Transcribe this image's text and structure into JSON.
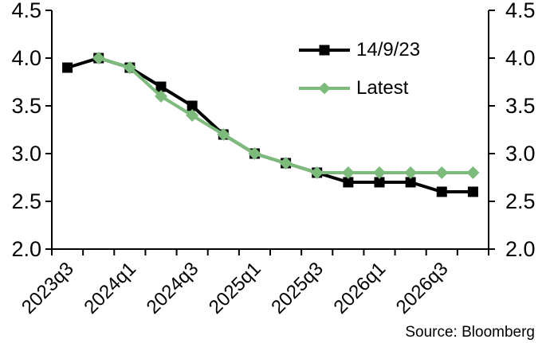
{
  "chart_data": {
    "type": "line",
    "title": "",
    "xlabel": "",
    "ylabel": "",
    "x_categories": [
      "2023q3",
      "2023q4",
      "2024q1",
      "2024q2",
      "2024q3",
      "2024q4",
      "2025q1",
      "2025q2",
      "2025q3",
      "2025q4",
      "2026q1",
      "2026q2",
      "2026q3",
      "2026q4"
    ],
    "x_tick_label_step": 2,
    "x_tick_labels_shown": [
      "2023q3",
      "2024q1",
      "2024q3",
      "2025q1",
      "2025q3",
      "2026q1",
      "2026q3"
    ],
    "y_ticks": [
      2.0,
      2.5,
      3.0,
      3.5,
      4.0,
      4.5
    ],
    "ylim": [
      2.0,
      4.5
    ],
    "grid": false,
    "dual_y_axis": true,
    "legend_position": "upper-center-inside",
    "series": [
      {
        "name": "14/9/23",
        "color": "#000000",
        "marker": "square",
        "values": [
          3.9,
          4.0,
          3.9,
          3.7,
          3.5,
          3.2,
          3.0,
          2.9,
          2.8,
          2.7,
          2.7,
          2.7,
          2.6,
          2.6
        ]
      },
      {
        "name": "Latest",
        "color": "#7CBB7C",
        "marker": "diamond",
        "values": [
          null,
          4.0,
          3.9,
          3.6,
          3.4,
          3.2,
          3.0,
          2.9,
          2.8,
          2.8,
          2.8,
          2.8,
          2.8,
          2.8
        ]
      }
    ],
    "source": "Source: Bloomberg"
  },
  "colors": {
    "background": "#ffffff",
    "axis": "#000000",
    "text": "#000000",
    "series_previous": "#000000",
    "series_latest": "#7CBB7C"
  }
}
